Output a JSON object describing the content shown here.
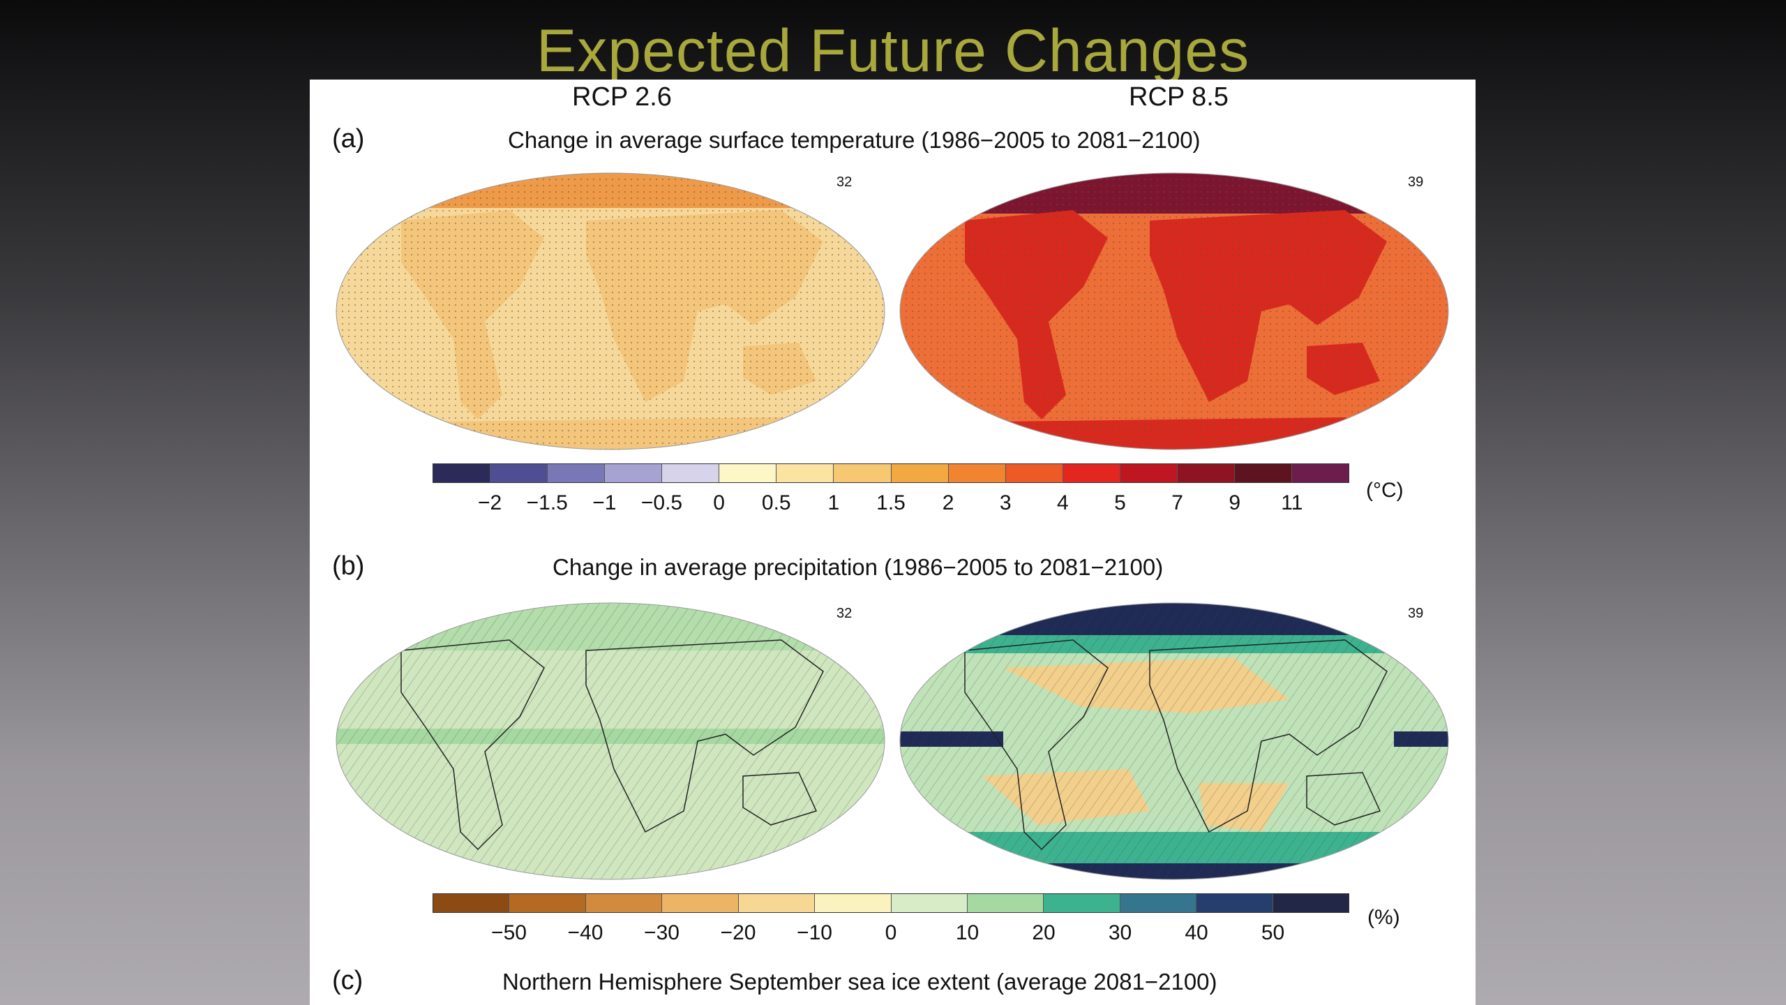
{
  "slide": {
    "title": "Expected Future Changes"
  },
  "figure": {
    "scenarios": [
      "RCP 2.6",
      "RCP 8.5"
    ],
    "panel_a": {
      "label": "(a)",
      "title": "Change in average surface temperature (1986−2005 to 2081−2100)",
      "model_counts": [
        "32",
        "39"
      ],
      "colorbar": {
        "unit": "(°C)",
        "ticks": [
          "−2",
          "−1.5",
          "−1",
          "−0.5",
          "0",
          "0.5",
          "1",
          "1.5",
          "2",
          "3",
          "4",
          "5",
          "7",
          "9",
          "11"
        ],
        "colors": [
          "#2b2a59",
          "#4f4e93",
          "#7a77b7",
          "#a6a3d2",
          "#d6d3ea",
          "#fdf7c8",
          "#fbe3a2",
          "#f7c872",
          "#f3a942",
          "#f08430",
          "#ec5a26",
          "#e3261f",
          "#bf1721",
          "#8f1422",
          "#5e1320",
          "#6d1d4c"
        ]
      },
      "legend_colors": {
        "rcp26_ocean": "#f6d99a",
        "rcp26_land": "#f4c67c",
        "rcp26_arctic": "#ee9a48",
        "rcp85_ocean": "#ee6e38",
        "rcp85_land": "#d8291f",
        "rcp85_arctic": "#7c1530"
      }
    },
    "panel_b": {
      "label": "(b)",
      "title": "Change in average precipitation (1986−2005 to 2081−2100)",
      "model_counts": [
        "32",
        "39"
      ],
      "colorbar": {
        "unit": "(%)",
        "ticks": [
          "−50",
          "−40",
          "−30",
          "−20",
          "−10",
          "0",
          "10",
          "20",
          "30",
          "40",
          "50"
        ],
        "colors": [
          "#8c4b15",
          "#b46a23",
          "#d28a3e",
          "#ecb566",
          "#f6d894",
          "#fbf3bf",
          "#d8ecc7",
          "#a6d9a2",
          "#3cb38e",
          "#35768e",
          "#243f6e",
          "#222748"
        ]
      },
      "legend_colors": {
        "rcp26_base": "#cfe6bf",
        "rcp26_itcz": "#a6d9a2",
        "rcp85_base": "#bfe2b8",
        "rcp85_itcz": "#1f2a55",
        "rcp85_dry": "#f3cf8c",
        "rcp85_wet": "#3cb38e"
      }
    },
    "panel_c": {
      "label": "(c)",
      "title": "Northern Hemisphere September sea ice extent (average 2081−2100)"
    }
  }
}
